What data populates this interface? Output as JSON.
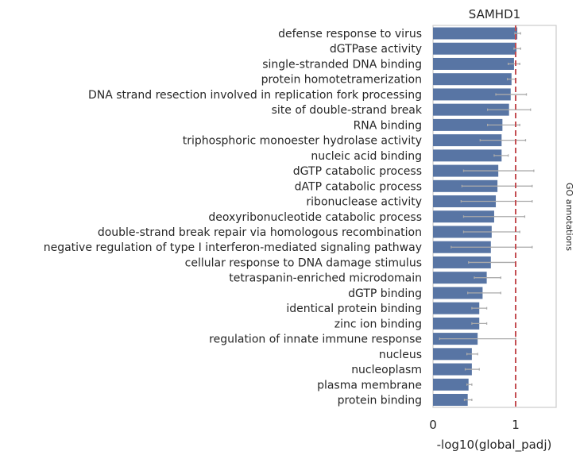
{
  "chart_data": {
    "type": "bar",
    "orientation": "horizontal",
    "title": "SAMHD1",
    "xlabel": "-log10(global_padj)",
    "ylabel": "GO annotations",
    "xlim": [
      0,
      1.5
    ],
    "xticks": [
      0,
      1
    ],
    "reference_line": {
      "x": 1.0,
      "color": "#c44e52",
      "style": "dashed"
    },
    "bar_color": "#5875a4",
    "errorbar_color": "#aaaaaa",
    "categories": [
      "defense response to virus",
      "dGTPase activity",
      "single-stranded DNA binding",
      "protein homotetramerization",
      "DNA strand resection involved in replication fork processing",
      "site of double-strand break",
      "RNA binding",
      "triphosphoric monoester hydrolase activity",
      "nucleic acid binding",
      "dGTP catabolic process",
      "dATP catabolic process",
      "ribonuclease activity",
      "deoxyribonucleotide catabolic process",
      "double-strand break repair via homologous recombination",
      "negative regulation of type I interferon-mediated signaling pathway",
      "cellular response to DNA damage stimulus",
      "tetraspanin-enriched microdomain",
      "dGTP binding",
      "identical protein binding",
      "zinc ion binding",
      "regulation of innate immune response",
      "nucleus",
      "nucleoplasm",
      "plasma membrane",
      "protein binding"
    ],
    "values": [
      1.02,
      1.01,
      0.98,
      0.95,
      0.94,
      0.92,
      0.84,
      0.83,
      0.83,
      0.79,
      0.78,
      0.76,
      0.74,
      0.71,
      0.7,
      0.7,
      0.65,
      0.6,
      0.56,
      0.56,
      0.54,
      0.47,
      0.47,
      0.43,
      0.42
    ],
    "errors_low": [
      0.99,
      0.98,
      0.91,
      0.9,
      0.76,
      0.66,
      0.66,
      0.57,
      0.74,
      0.37,
      0.35,
      0.34,
      0.37,
      0.37,
      0.22,
      0.43,
      0.5,
      0.42,
      0.47,
      0.47,
      0.08,
      0.41,
      0.39,
      0.41,
      0.38
    ],
    "errors_high": [
      1.06,
      1.06,
      1.05,
      1.0,
      1.13,
      1.18,
      1.05,
      1.12,
      0.91,
      1.22,
      1.2,
      1.2,
      1.11,
      1.05,
      1.2,
      1.0,
      0.82,
      0.82,
      0.65,
      0.65,
      1.0,
      0.54,
      0.56,
      0.47,
      0.47
    ]
  }
}
